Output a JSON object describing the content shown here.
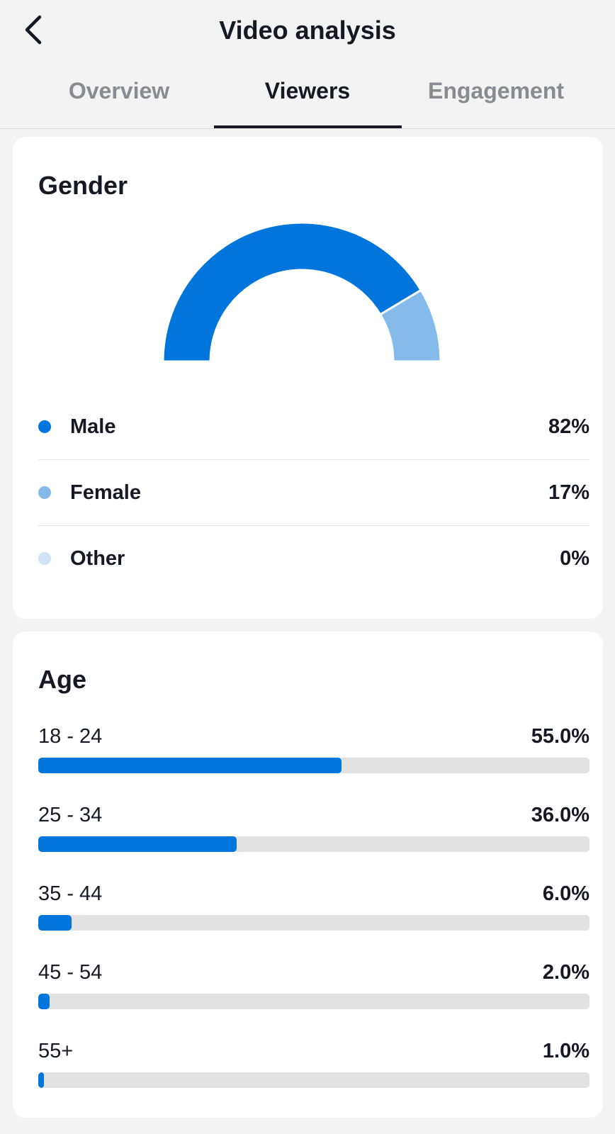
{
  "header": {
    "title": "Video analysis",
    "back_icon": "chevron-left-icon"
  },
  "tabs": [
    {
      "label": "Overview",
      "active": false
    },
    {
      "label": "Viewers",
      "active": true
    },
    {
      "label": "Engagement",
      "active": false
    }
  ],
  "gender": {
    "title": "Gender",
    "items": [
      {
        "label": "Male",
        "value": "82%",
        "percent": 82,
        "color": "#0075db"
      },
      {
        "label": "Female",
        "value": "17%",
        "percent": 17,
        "color": "#85bbeb"
      },
      {
        "label": "Other",
        "value": "0%",
        "percent": 0,
        "color": "#cfe3f6"
      }
    ]
  },
  "age": {
    "title": "Age",
    "items": [
      {
        "label": "18 - 24",
        "value": "55.0%",
        "percent": 55.0
      },
      {
        "label": "25 - 34",
        "value": "36.0%",
        "percent": 36.0
      },
      {
        "label": "35 - 44",
        "value": "6.0%",
        "percent": 6.0
      },
      {
        "label": "45 - 54",
        "value": "2.0%",
        "percent": 2.0
      },
      {
        "label": "55+",
        "value": "1.0%",
        "percent": 1.0
      }
    ]
  },
  "colors": {
    "accent": "#0075db",
    "track": "#e2e2e2"
  }
}
